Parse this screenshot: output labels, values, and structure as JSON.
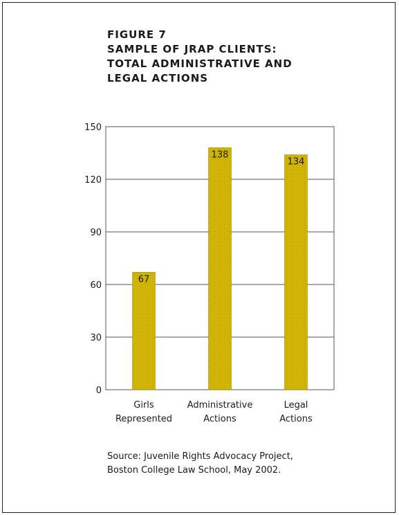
{
  "figure": {
    "label": "FIGURE 7",
    "title_lines": [
      "SAMPLE OF JRAP CLIENTS:",
      "TOTAL ADMINISTRATIVE AND",
      "LEGAL ACTIONS"
    ]
  },
  "chart_data": {
    "type": "bar",
    "title": "SAMPLE OF JRAP CLIENTS: TOTAL ADMINISTRATIVE AND LEGAL ACTIONS",
    "categories": [
      [
        "Girls",
        "Represented"
      ],
      [
        "Administrative",
        "Actions"
      ],
      [
        "Legal",
        "Actions"
      ]
    ],
    "values": [
      67,
      138,
      134
    ],
    "data_labels": [
      "67",
      "138",
      "134"
    ],
    "ylim": [
      0,
      150
    ],
    "yticks": [
      0,
      30,
      60,
      90,
      120,
      150
    ],
    "grid": true,
    "xlabel": "",
    "ylabel": "",
    "bar_color": "#d4b800",
    "grid_color": "#555555"
  },
  "source": {
    "lines": [
      "Source: Juvenile Rights Advocacy Project,",
      "Boston College Law School, May 2002."
    ]
  }
}
